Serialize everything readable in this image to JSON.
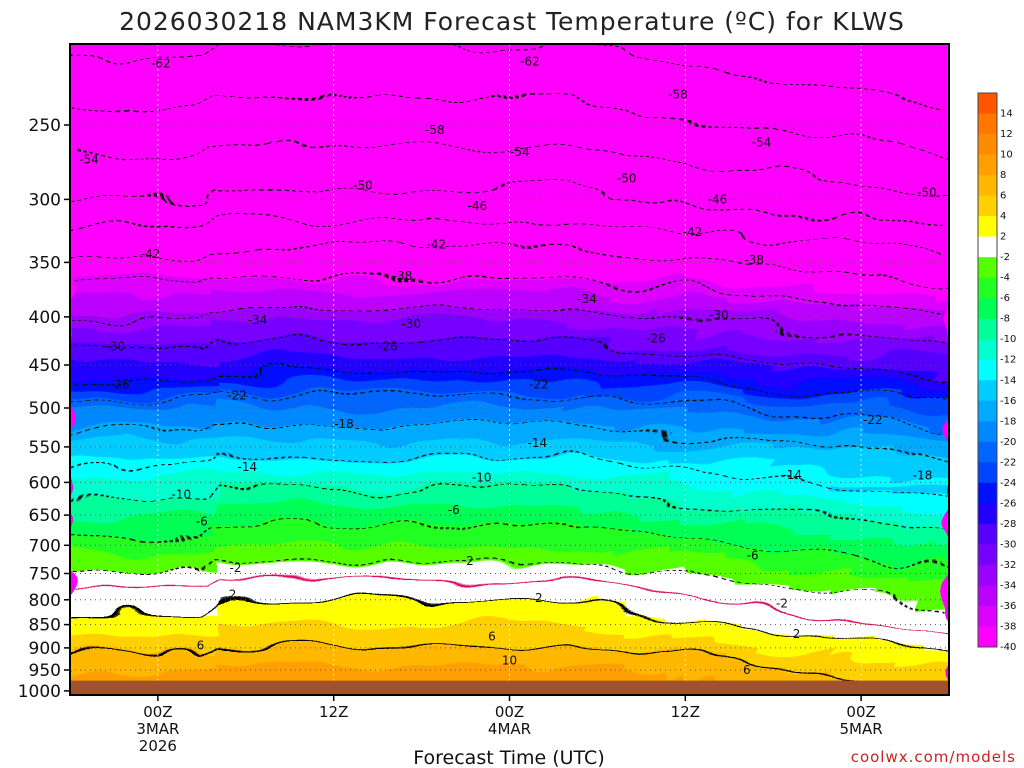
{
  "title": "2026030218 NAM3KM Forecast Temperature (ºC) for KLWS",
  "credit": "coolwx.com/models",
  "chart_data": {
    "type": "heatmap",
    "title": "2026030218 NAM3KM Forecast Temperature (ºC) for KLWS",
    "xlabel": "Forecast Time (UTC)",
    "ylabel": "",
    "y_scale": "log-pressure",
    "y_axis_inverted": true,
    "x_ticks": [
      {
        "hours": 6,
        "lines": [
          "00Z",
          "3MAR",
          "2026"
        ]
      },
      {
        "hours": 18,
        "lines": [
          "12Z"
        ]
      },
      {
        "hours": 30,
        "lines": [
          "00Z",
          "4MAR"
        ]
      },
      {
        "hours": 42,
        "lines": [
          "12Z"
        ]
      },
      {
        "hours": 54,
        "lines": [
          "00Z",
          "5MAR"
        ]
      }
    ],
    "xlim_hours": [
      0,
      60
    ],
    "y_ticks": [
      250,
      300,
      350,
      400,
      450,
      500,
      550,
      600,
      650,
      700,
      750,
      800,
      850,
      900,
      950,
      1000
    ],
    "ylim": [
      1010,
      205
    ],
    "ground_pressure": 975,
    "ground_color": "#a0522d",
    "grid": true,
    "colorbar": {
      "placement": "right",
      "bins": [
        {
          "color": "#ff5500",
          "label": "14"
        },
        {
          "color": "#ff7700",
          "label": "12"
        },
        {
          "color": "#ff8c00",
          "label": "10"
        },
        {
          "color": "#ffa000",
          "label": "8"
        },
        {
          "color": "#ffb700",
          "label": "6"
        },
        {
          "color": "#ffd000",
          "label": "4"
        },
        {
          "color": "#ffff00",
          "label": "2"
        },
        {
          "color": "#ffffff",
          "label": "-2"
        },
        {
          "color": "#55ff00",
          "label": "-4"
        },
        {
          "color": "#22ff22",
          "label": "-6"
        },
        {
          "color": "#00ff55",
          "label": "-8"
        },
        {
          "color": "#00ff99",
          "label": "-10"
        },
        {
          "color": "#00ffcc",
          "label": "-12"
        },
        {
          "color": "#00ffff",
          "label": "-14"
        },
        {
          "color": "#00ccff",
          "label": "-16"
        },
        {
          "color": "#00aaff",
          "label": "-18"
        },
        {
          "color": "#0088ff",
          "label": "-20"
        },
        {
          "color": "#0066ff",
          "label": "-22"
        },
        {
          "color": "#0044ff",
          "label": "-24"
        },
        {
          "color": "#0011ff",
          "label": "-26"
        },
        {
          "color": "#2200ff",
          "label": "-28"
        },
        {
          "color": "#5500ff",
          "label": "-30"
        },
        {
          "color": "#7700ff",
          "label": "-32"
        },
        {
          "color": "#9900ff",
          "label": "-34"
        },
        {
          "color": "#bb00ff",
          "label": "-36"
        },
        {
          "color": "#dd00ff",
          "label": "-38"
        },
        {
          "color": "#ff00ff",
          "label": "-40"
        }
      ]
    },
    "temperature_profile_at_x0": [
      {
        "p": 1000,
        "t": 10
      },
      {
        "p": 950,
        "t": 9
      },
      {
        "p": 900,
        "t": 6
      },
      {
        "p": 850,
        "t": 4
      },
      {
        "p": 800,
        "t": 2
      },
      {
        "p": 760,
        "t": 0
      },
      {
        "p": 700,
        "t": -4
      },
      {
        "p": 650,
        "t": -7
      },
      {
        "p": 600,
        "t": -11
      },
      {
        "p": 550,
        "t": -15
      },
      {
        "p": 500,
        "t": -20
      },
      {
        "p": 450,
        "t": -27
      },
      {
        "p": 400,
        "t": -33
      },
      {
        "p": 350,
        "t": -40
      },
      {
        "p": 300,
        "t": -49
      },
      {
        "p": 250,
        "t": -56
      },
      {
        "p": 205,
        "t": -62
      }
    ],
    "contour_labels": [
      {
        "h": 6.2,
        "p": 215,
        "label": "-62"
      },
      {
        "h": 31.4,
        "p": 214,
        "label": "-62"
      },
      {
        "h": 41.5,
        "p": 232,
        "label": "-58"
      },
      {
        "h": 24.9,
        "p": 253,
        "label": "-58"
      },
      {
        "h": 1.3,
        "p": 272,
        "label": "-54"
      },
      {
        "h": 30.7,
        "p": 267,
        "label": "-54"
      },
      {
        "h": 47.2,
        "p": 261,
        "label": "-54"
      },
      {
        "h": 20.0,
        "p": 290,
        "label": "-50"
      },
      {
        "h": 38.0,
        "p": 285,
        "label": "-50"
      },
      {
        "h": 58.5,
        "p": 295,
        "label": "-50"
      },
      {
        "h": 27.8,
        "p": 305,
        "label": "-46"
      },
      {
        "h": 44.2,
        "p": 300,
        "label": "-46"
      },
      {
        "h": 5.5,
        "p": 343,
        "label": "-42"
      },
      {
        "h": 25.0,
        "p": 335,
        "label": "-42"
      },
      {
        "h": 42.5,
        "p": 325,
        "label": "-42"
      },
      {
        "h": 22.7,
        "p": 362,
        "label": "-38"
      },
      {
        "h": 46.7,
        "p": 348,
        "label": "-38"
      },
      {
        "h": 35.3,
        "p": 383,
        "label": "-34"
      },
      {
        "h": 12.8,
        "p": 403,
        "label": "-34"
      },
      {
        "h": 23.3,
        "p": 407,
        "label": "-30"
      },
      {
        "h": 44.3,
        "p": 398,
        "label": "-30"
      },
      {
        "h": 3.1,
        "p": 430,
        "label": "-30"
      },
      {
        "h": 21.7,
        "p": 430,
        "label": "-26"
      },
      {
        "h": 40.0,
        "p": 422,
        "label": "-26"
      },
      {
        "h": 3.4,
        "p": 472,
        "label": "-26"
      },
      {
        "h": 11.4,
        "p": 485,
        "label": "-22"
      },
      {
        "h": 32.0,
        "p": 472,
        "label": "-22"
      },
      {
        "h": 54.8,
        "p": 515,
        "label": "-22"
      },
      {
        "h": 18.7,
        "p": 520,
        "label": "-18"
      },
      {
        "h": 58.2,
        "p": 590,
        "label": "-18"
      },
      {
        "h": 31.9,
        "p": 545,
        "label": "-14"
      },
      {
        "h": 12.1,
        "p": 578,
        "label": "-14"
      },
      {
        "h": 49.3,
        "p": 589,
        "label": "-14"
      },
      {
        "h": 28.1,
        "p": 593,
        "label": "-10"
      },
      {
        "h": 7.6,
        "p": 618,
        "label": "-10"
      },
      {
        "h": 26.2,
        "p": 642,
        "label": "-6"
      },
      {
        "h": 9.0,
        "p": 660,
        "label": "-6"
      },
      {
        "h": 46.6,
        "p": 718,
        "label": "-6"
      },
      {
        "h": 11.3,
        "p": 740,
        "label": "-2"
      },
      {
        "h": 27.3,
        "p": 727,
        "label": "2"
      },
      {
        "h": 11.1,
        "p": 790,
        "label": "2"
      },
      {
        "h": 32.0,
        "p": 796,
        "label": "2"
      },
      {
        "h": 48.6,
        "p": 807,
        "label": "-2"
      },
      {
        "h": 49.6,
        "p": 870,
        "label": "2"
      },
      {
        "h": 8.9,
        "p": 895,
        "label": "6"
      },
      {
        "h": 28.8,
        "p": 875,
        "label": "6"
      },
      {
        "h": 46.2,
        "p": 950,
        "label": "6"
      },
      {
        "h": 30.0,
        "p": 928,
        "label": "10"
      }
    ]
  }
}
